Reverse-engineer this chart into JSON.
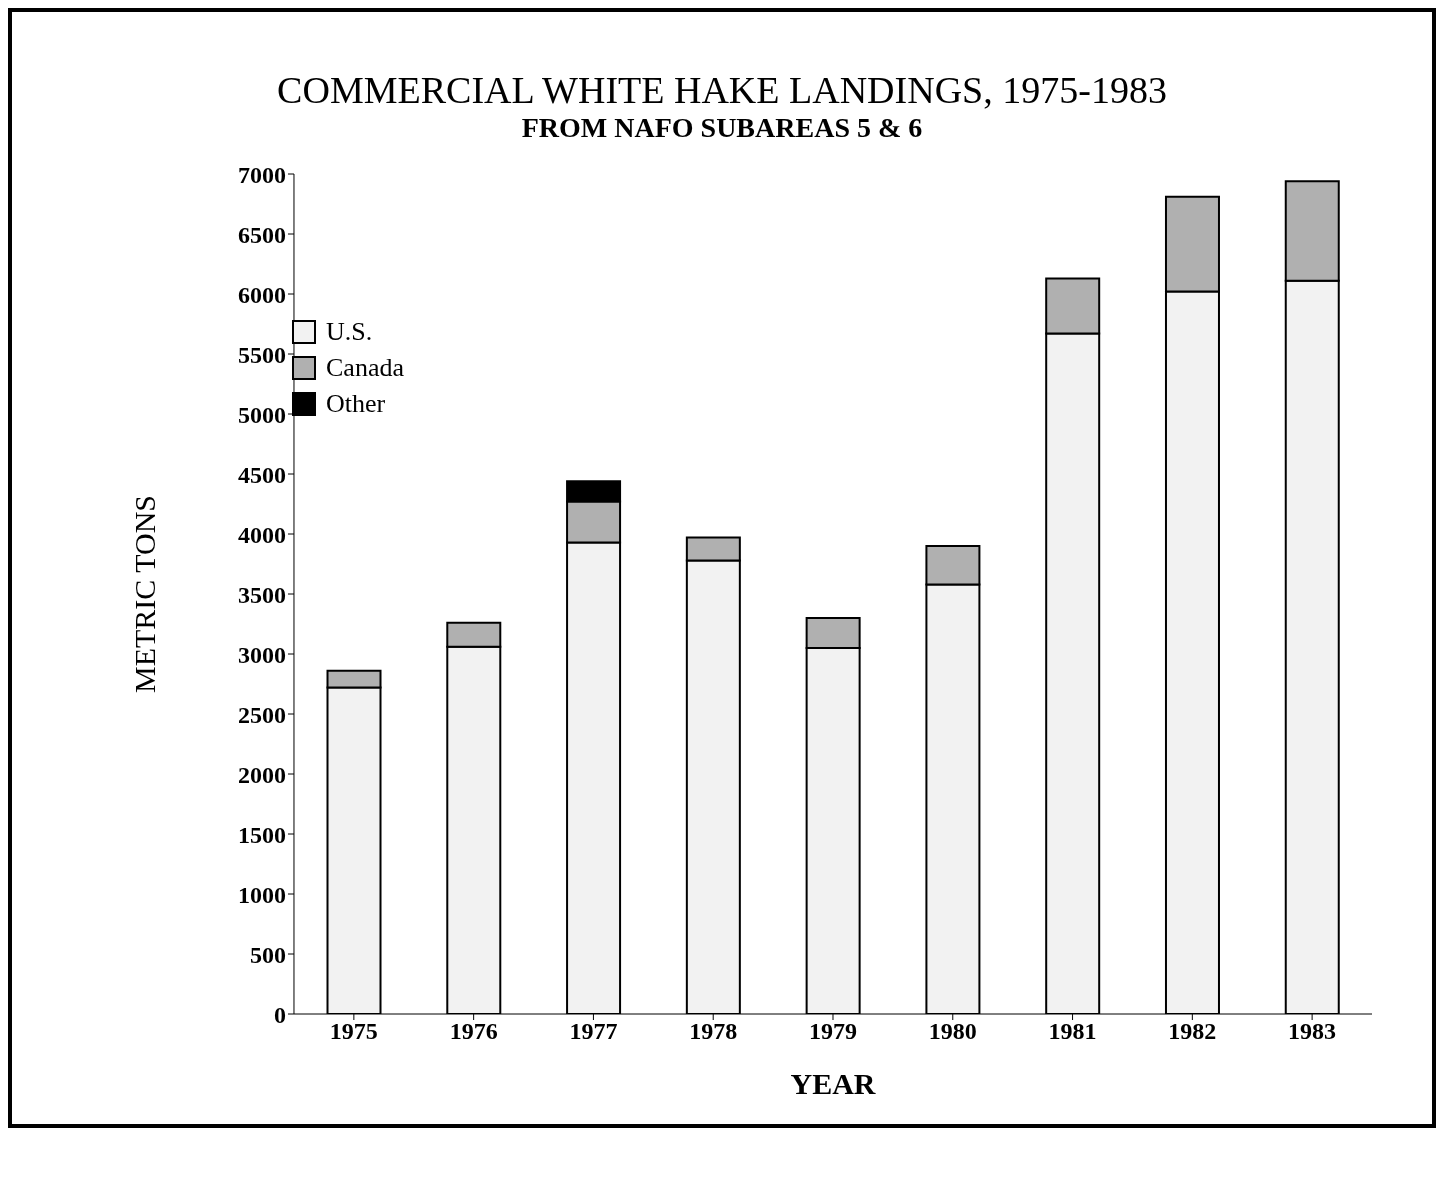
{
  "chart_data": {
    "type": "bar",
    "title": "COMMERCIAL WHITE HAKE LANDINGS, 1975-1983",
    "subtitle": "FROM NAFO SUBAREAS 5 & 6",
    "xlabel": "YEAR",
    "ylabel": "METRIC TONS",
    "categories": [
      "1975",
      "1976",
      "1977",
      "1978",
      "1979",
      "1980",
      "1981",
      "1982",
      "1983"
    ],
    "stacked": true,
    "series": [
      {
        "name": "U.S.",
        "color": "#f2f2f2",
        "values": [
          2720,
          3060,
          3930,
          3780,
          3050,
          3580,
          5670,
          6020,
          6110
        ]
      },
      {
        "name": "Canada",
        "color": "#b0b0b0",
        "values": [
          140,
          200,
          340,
          190,
          250,
          320,
          460,
          790,
          830
        ]
      },
      {
        "name": "Other",
        "color": "#000000",
        "values": [
          null,
          null,
          170,
          null,
          null,
          null,
          null,
          null,
          null
        ]
      }
    ],
    "ylim": [
      0,
      7000
    ],
    "yticks": [
      0,
      500,
      1000,
      1500,
      2000,
      2500,
      3000,
      3500,
      4000,
      4500,
      5000,
      5500,
      6000,
      6500,
      7000
    ],
    "grid": false,
    "legend": "top left"
  }
}
